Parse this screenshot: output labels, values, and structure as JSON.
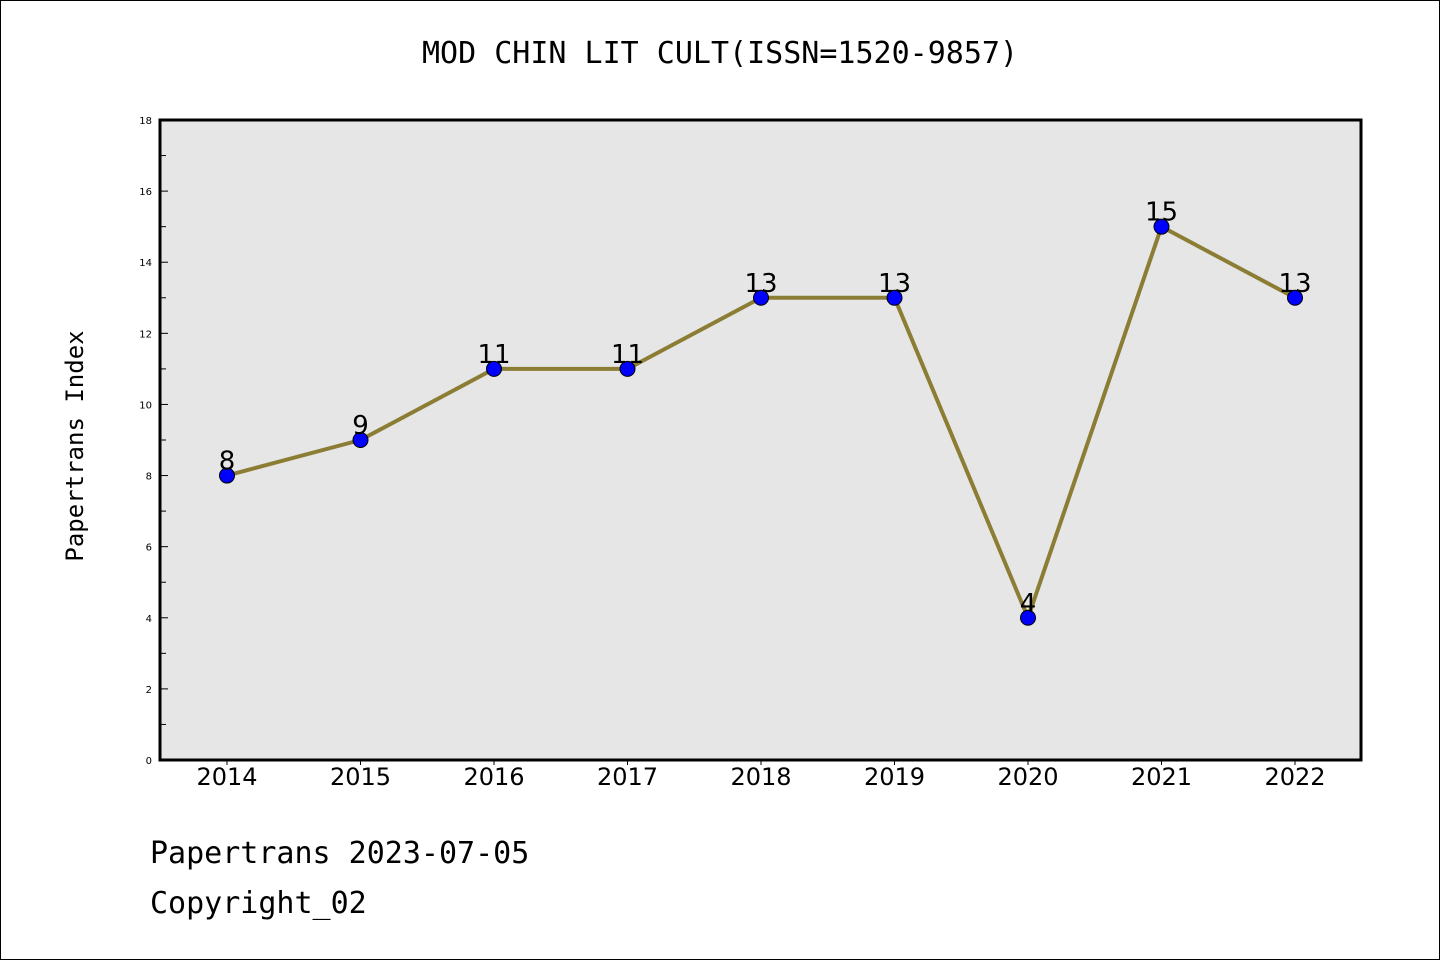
{
  "chart_data": {
    "type": "line",
    "title": "MOD CHIN LIT CULT(ISSN=1520-9857)",
    "xlabel": "",
    "ylabel": "Papertrans Index",
    "categories": [
      "2014",
      "2015",
      "2016",
      "2017",
      "2018",
      "2019",
      "2020",
      "2021",
      "2022"
    ],
    "values": [
      8,
      9,
      11,
      11,
      13,
      13,
      4,
      15,
      13
    ],
    "ylim": [
      0,
      18
    ],
    "yticks": [
      0,
      2,
      4,
      6,
      8,
      10,
      12,
      14,
      16,
      18
    ],
    "grid": false,
    "line_color": "#8c7d35",
    "marker_color": "#0000ff",
    "plot_background": "#e6e6e6"
  },
  "footer": {
    "line1": "Papertrans 2023-07-05",
    "line2": "Copyright_02"
  }
}
